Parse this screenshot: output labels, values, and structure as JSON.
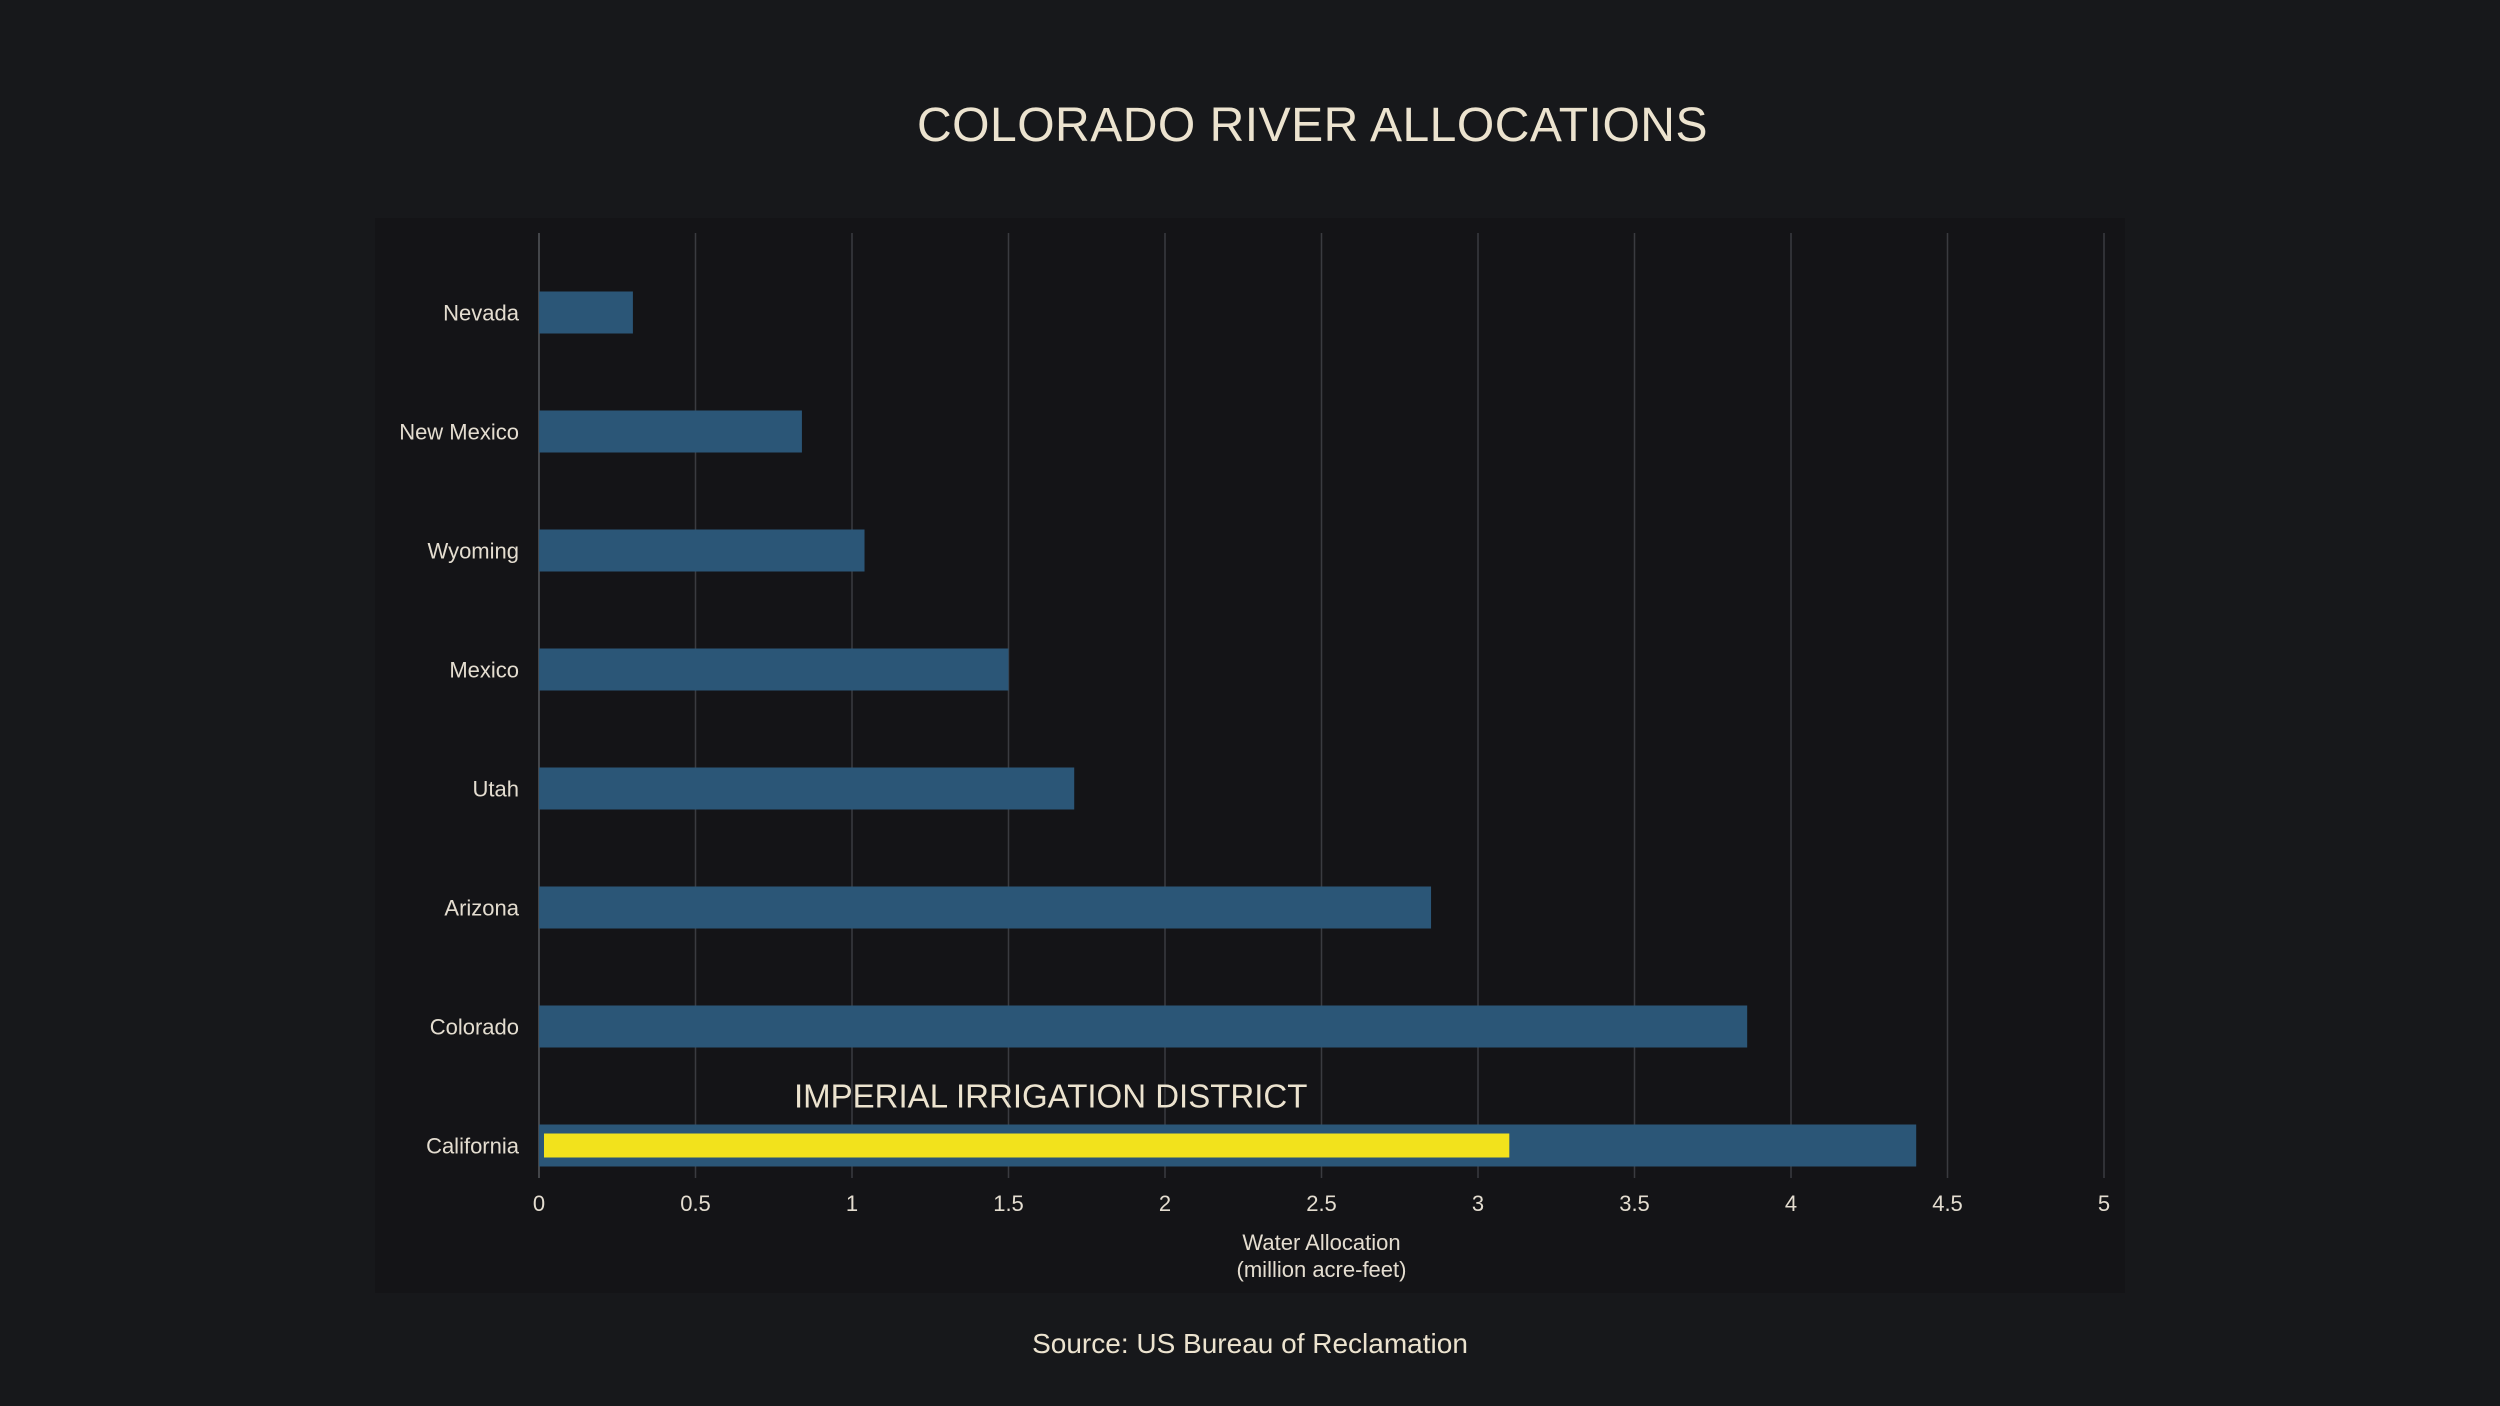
{
  "chart_data": {
    "type": "bar",
    "orientation": "horizontal",
    "title": "COLORADO RIVER ALLOCATIONS",
    "categories": [
      "Nevada",
      "New Mexico",
      "Wyoming",
      "Mexico",
      "Utah",
      "Arizona",
      "Colorado",
      "California"
    ],
    "values": [
      0.3,
      0.84,
      1.04,
      1.5,
      1.71,
      2.85,
      3.86,
      4.4
    ],
    "highlight": {
      "category": "California",
      "label": "IMPERIAL IRRIGATION DISTRICT",
      "value": 3.1
    },
    "xlabel": [
      "Water Allocation",
      "(million acre-feet)"
    ],
    "xlim": [
      0,
      5
    ],
    "xticks": [
      0,
      0.5,
      1,
      1.5,
      2,
      2.5,
      3,
      3.5,
      4,
      4.5,
      5
    ],
    "grid": true,
    "bar_color": "#2b5677",
    "highlight_color": "#f2e21c",
    "grid_color": "#3a3b40"
  },
  "source": "Source: US Bureau of Reclamation"
}
